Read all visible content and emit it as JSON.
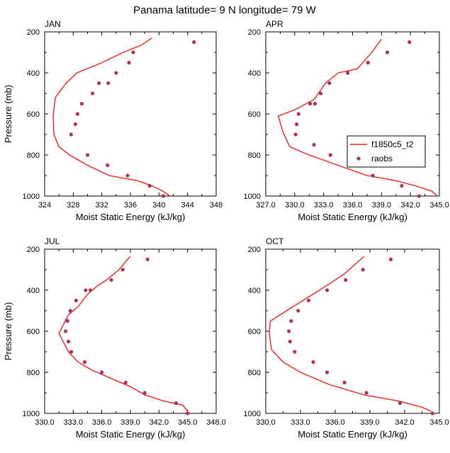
{
  "title": "Panama  latitude= 9 N longitude= 79 W",
  "colors": {
    "model": "#e8231f",
    "obs": "#b0305a"
  },
  "legend": {
    "model": "f1850c5_t2",
    "obs": "raobs"
  },
  "ylabel": "Pressure (mb)",
  "xlabel": "Moist Static Energy (kJ/kg)",
  "chart_data": [
    {
      "type": "line",
      "panel": "JAN",
      "xlabel": "Moist Static Energy (kJ/kg)",
      "ylabel": "Pressure (mb)",
      "xlim": [
        324,
        348
      ],
      "ylim": [
        1000,
        200
      ],
      "xticks": [
        324,
        328,
        332,
        336,
        340,
        344,
        348
      ],
      "xticklabels": [
        "324",
        "328",
        "332",
        "336",
        "340",
        "344",
        "348"
      ],
      "yticks": [
        200,
        400,
        600,
        800,
        1000
      ],
      "yticklabels": [
        "200",
        "400",
        "600",
        "800",
        "1000"
      ],
      "series": [
        {
          "name": "f1850c5_t2",
          "kind": "line",
          "x": [
            341.5,
            340.5,
            339.0,
            337.0,
            333.0,
            330.0,
            327.5,
            326.0,
            325.3,
            325.2,
            325.5,
            327.0,
            328.5,
            332.0,
            335.0,
            337.5,
            339.0
          ],
          "y": [
            1000,
            975,
            950,
            925,
            900,
            850,
            800,
            760,
            700,
            610,
            520,
            450,
            400,
            350,
            300,
            265,
            230
          ]
        },
        {
          "name": "raobs",
          "kind": "scatter",
          "x": [
            340.6,
            338.7,
            335.6,
            332.8,
            330.0,
            327.7,
            328.3,
            328.6,
            329.2,
            330.7,
            331.6,
            332.9,
            334.0,
            335.8,
            336.4,
            344.9
          ],
          "y": [
            1000,
            950,
            900,
            850,
            800,
            700,
            650,
            600,
            550,
            500,
            450,
            450,
            400,
            350,
            300,
            250
          ]
        }
      ]
    },
    {
      "type": "line",
      "panel": "APR",
      "xlabel": "Moist Static Energy (kJ/kg)",
      "ylabel": "Pressure (mb)",
      "xlim": [
        327,
        345
      ],
      "ylim": [
        1000,
        200
      ],
      "xticks": [
        327,
        330,
        333,
        336,
        339,
        342,
        345
      ],
      "xticklabels": [
        "327.0",
        "330.0",
        "333.0",
        "336.0",
        "339.0",
        "342.0",
        "345.0"
      ],
      "yticks": [
        200,
        400,
        600,
        800,
        1000
      ],
      "yticklabels": [
        "200",
        "400",
        "600",
        "800",
        "1000"
      ],
      "series": [
        {
          "name": "f1850c5_t2",
          "kind": "line",
          "x": [
            344.8,
            344.2,
            342.5,
            340.5,
            337.5,
            334.5,
            331.5,
            329.5,
            328.8,
            328.3,
            330.0,
            332.0,
            333.2,
            334.5,
            336.5,
            338.0,
            339.0
          ],
          "y": [
            1000,
            975,
            950,
            925,
            900,
            850,
            800,
            760,
            690,
            610,
            580,
            530,
            450,
            400,
            380,
            300,
            235
          ]
        },
        {
          "name": "raobs",
          "kind": "scatter",
          "x": [
            342.9,
            341.1,
            338.1,
            335.8,
            333.7,
            332.0,
            330.1,
            330.2,
            330.4,
            331.6,
            332.1,
            332.7,
            333.6,
            335.5,
            337.6,
            339.6,
            341.9
          ],
          "y": [
            1000,
            950,
            900,
            850,
            800,
            750,
            700,
            650,
            600,
            550,
            550,
            500,
            450,
            400,
            350,
            300,
            250
          ]
        }
      ]
    },
    {
      "type": "line",
      "panel": "JUL",
      "xlabel": "Moist Static Energy (kJ/kg)",
      "ylabel": "Pressure (mb)",
      "xlim": [
        330,
        348
      ],
      "ylim": [
        1000,
        200
      ],
      "xticks": [
        330,
        333,
        336,
        339,
        342,
        345,
        348
      ],
      "xticklabels": [
        "330.0",
        "333.0",
        "336.0",
        "339.0",
        "342.0",
        "345.0",
        "348.0"
      ],
      "yticks": [
        200,
        400,
        600,
        800,
        1000
      ],
      "yticklabels": [
        "200",
        "400",
        "600",
        "800",
        "1000"
      ],
      "series": [
        {
          "name": "f1850c5_t2",
          "kind": "line",
          "x": [
            345.0,
            344.5,
            342.5,
            340.5,
            339.0,
            337.0,
            335.0,
            333.5,
            332.5,
            331.5,
            332.5,
            333.5,
            334.5,
            335.5,
            336.5,
            337.8,
            338.5,
            339.0
          ],
          "y": [
            990,
            960,
            940,
            910,
            870,
            830,
            790,
            750,
            700,
            610,
            520,
            480,
            420,
            380,
            350,
            300,
            260,
            235
          ]
        },
        {
          "name": "raobs",
          "kind": "scatter",
          "x": [
            345.0,
            343.8,
            340.5,
            338.5,
            336.0,
            334.2,
            332.8,
            332.5,
            332.2,
            332.4,
            332.7,
            333.3,
            334.3,
            334.8,
            337.0,
            338.2,
            340.8
          ],
          "y": [
            1000,
            950,
            900,
            850,
            800,
            750,
            700,
            650,
            600,
            550,
            500,
            450,
            400,
            400,
            350,
            300,
            250
          ]
        }
      ]
    },
    {
      "type": "line",
      "panel": "OCT",
      "xlabel": "Moist Static Energy (kJ/kg)",
      "ylabel": "Pressure (mb)",
      "xlim": [
        330,
        345
      ],
      "ylim": [
        1000,
        200
      ],
      "xticks": [
        330,
        333,
        336,
        339,
        342,
        345
      ],
      "xticklabels": [
        "330.0",
        "333.0",
        "336.0",
        "339.0",
        "342.0",
        "345.0"
      ],
      "yticks": [
        200,
        400,
        600,
        800,
        1000
      ],
      "yticklabels": [
        "200",
        "400",
        "600",
        "800",
        "1000"
      ],
      "series": [
        {
          "name": "f1850c5_t2",
          "kind": "line",
          "x": [
            344.3,
            343.5,
            341.5,
            338.5,
            335.5,
            333.0,
            331.5,
            330.5,
            330.3,
            330.4,
            331.8,
            333.5,
            335.2,
            336.8,
            338.5
          ],
          "y": [
            990,
            970,
            940,
            910,
            860,
            800,
            750,
            690,
            610,
            550,
            500,
            440,
            380,
            320,
            235
          ]
        },
        {
          "name": "raobs",
          "kind": "scatter",
          "x": [
            344.4,
            341.6,
            338.7,
            336.8,
            335.3,
            334.1,
            332.5,
            332.1,
            332.0,
            332.2,
            332.8,
            333.7,
            335.3,
            336.9,
            338.4,
            340.8
          ],
          "y": [
            1000,
            950,
            900,
            850,
            800,
            750,
            700,
            650,
            600,
            550,
            500,
            450,
            400,
            350,
            300,
            250
          ]
        }
      ]
    }
  ]
}
